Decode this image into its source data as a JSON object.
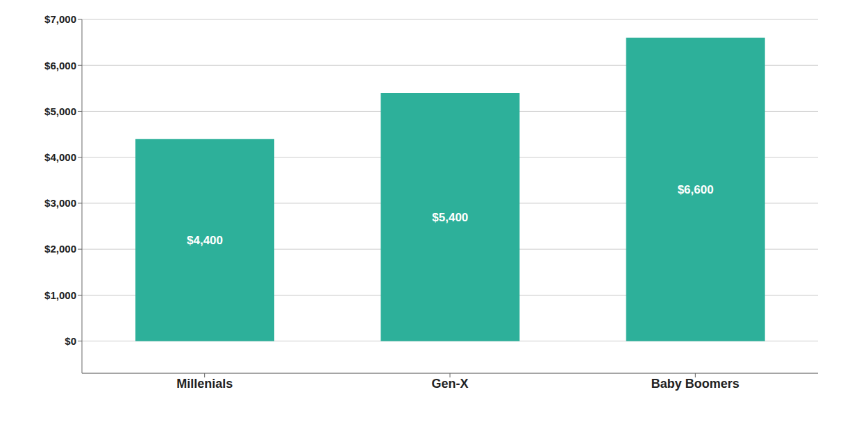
{
  "chart_data": {
    "type": "bar",
    "categories": [
      "Millenials",
      "Gen-X",
      "Baby Boomers"
    ],
    "values": [
      4400,
      5400,
      6600
    ],
    "value_labels": [
      "$4,400",
      "$5,400",
      "$6,600"
    ],
    "data_labels": true,
    "color": "#2db09a",
    "ylim": [
      -700,
      7000
    ],
    "yticks": [
      {
        "value": 0,
        "label": "$0"
      },
      {
        "value": 1000,
        "label": "$1,000"
      },
      {
        "value": 2000,
        "label": "$2,000"
      },
      {
        "value": 3000,
        "label": "$3,000"
      },
      {
        "value": 4000,
        "label": "$4,000"
      },
      {
        "value": 5000,
        "label": "$5,000"
      },
      {
        "value": 6000,
        "label": "$6,000"
      },
      {
        "value": 7000,
        "label": "$7,000"
      }
    ],
    "grid": true
  }
}
